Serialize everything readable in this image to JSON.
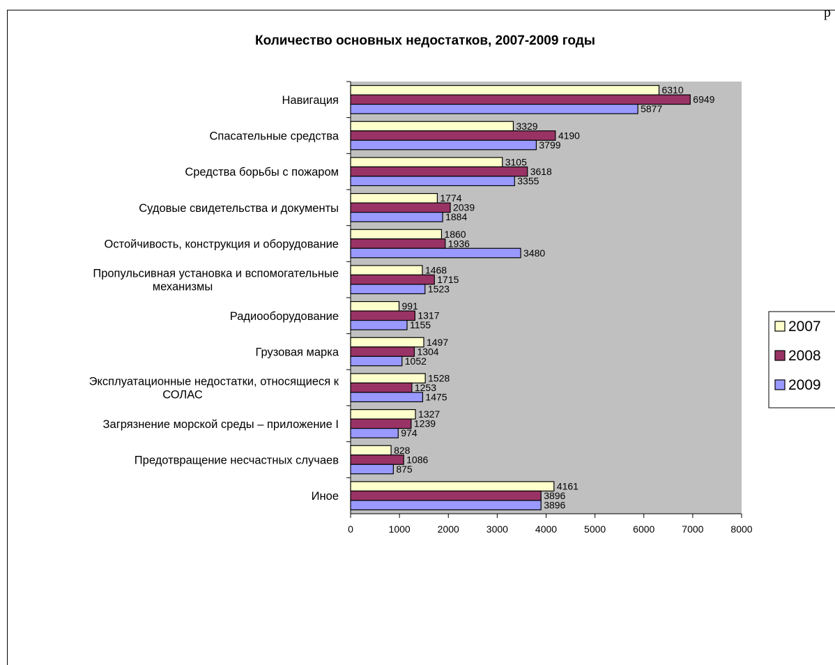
{
  "page_mark": "р",
  "chart_data": {
    "type": "bar",
    "orientation": "horizontal",
    "title": "Количество основных недостатков, 2007-2009 годы",
    "categories": [
      [
        "Навигация"
      ],
      [
        "Спасательные средства"
      ],
      [
        "Средства борьбы с пожаром"
      ],
      [
        "Судовые свидетельства и документы"
      ],
      [
        "Остойчивость, конструкция и оборудование"
      ],
      [
        "Пропульсивная установка и вспомогательные",
        "механизмы"
      ],
      [
        "Радиооборудование"
      ],
      [
        "Грузовая  марка"
      ],
      [
        "Эксплуатационные недостатки, относящиеся к",
        "СОЛАС"
      ],
      [
        "Загрязнение морской среды – приложение I"
      ],
      [
        "Предотвращение несчастных случаев"
      ],
      [
        "Иное"
      ]
    ],
    "series": [
      {
        "name": "2007",
        "color": "#FFFFCC",
        "values": [
          6310,
          3329,
          3105,
          1774,
          1860,
          1468,
          991,
          1497,
          1528,
          1327,
          828,
          4161
        ]
      },
      {
        "name": "2008",
        "color": "#993366",
        "values": [
          6949,
          4190,
          3618,
          2039,
          1936,
          1715,
          1317,
          1304,
          1253,
          1239,
          1086,
          3896
        ]
      },
      {
        "name": "2009",
        "color": "#9999FF",
        "values": [
          5877,
          3799,
          3355,
          1884,
          3480,
          1523,
          1155,
          1052,
          1475,
          974,
          875,
          3896
        ]
      }
    ],
    "xlim": [
      0,
      8000
    ],
    "xticks": [
      0,
      1000,
      2000,
      3000,
      4000,
      5000,
      6000,
      7000,
      8000
    ],
    "plot_background": "#C0C0C0",
    "grid": false,
    "legend_position": "right"
  }
}
